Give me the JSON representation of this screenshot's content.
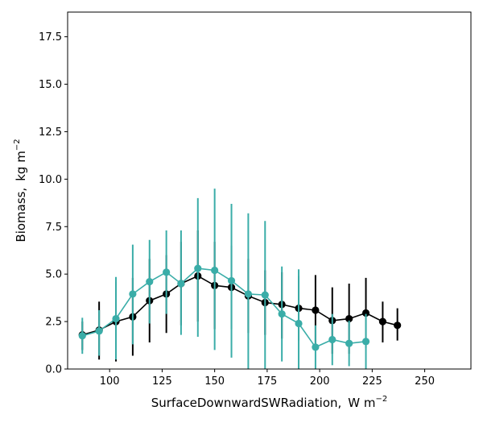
{
  "chart_data": {
    "type": "line",
    "xlabel_main": "SurfaceDownwardSWRadiation,",
    "xlabel_unit": "W m",
    "xlabel_exp": "−2",
    "ylabel_main": "Biomass,",
    "ylabel_unit": "kg m",
    "ylabel_exp": "−2",
    "xlim": [
      80,
      272
    ],
    "ylim": [
      0,
      18.8
    ],
    "x_ticks": [
      100,
      125,
      150,
      175,
      200,
      225,
      250
    ],
    "x_tick_labels": [
      "100",
      "125",
      "150",
      "175",
      "200",
      "225",
      "250"
    ],
    "y_ticks": [
      0,
      2.5,
      5,
      7.5,
      10,
      12.5,
      15,
      17.5
    ],
    "y_tick_labels": [
      "0.0",
      "2.5",
      "5.0",
      "7.5",
      "10.0",
      "12.5",
      "15.0",
      "17.5"
    ],
    "grid": false,
    "series": [
      {
        "color": "#000000",
        "points": [
          {
            "x": 87,
            "y": 1.8,
            "lo": 1.0,
            "hi": 2.5
          },
          {
            "x": 95,
            "y": 2.05,
            "lo": 0.5,
            "hi": 3.55
          },
          {
            "x": 103,
            "y": 2.5,
            "lo": 0.4,
            "hi": 4.6
          },
          {
            "x": 111,
            "y": 2.75,
            "lo": 0.7,
            "hi": 4.8
          },
          {
            "x": 119,
            "y": 3.6,
            "lo": 1.4,
            "hi": 5.8
          },
          {
            "x": 127,
            "y": 3.95,
            "lo": 1.9,
            "hi": 6.0
          },
          {
            "x": 134,
            "y": 4.5,
            "lo": 2.3,
            "hi": 6.7
          },
          {
            "x": 142,
            "y": 4.9,
            "lo": 2.5,
            "hi": 7.3
          },
          {
            "x": 150,
            "y": 4.4,
            "lo": 2.1,
            "hi": 6.7
          },
          {
            "x": 158,
            "y": 4.3,
            "lo": 2.1,
            "hi": 6.5
          },
          {
            "x": 166,
            "y": 3.85,
            "lo": 1.9,
            "hi": 5.8
          },
          {
            "x": 174,
            "y": 3.5,
            "lo": 1.8,
            "hi": 5.2
          },
          {
            "x": 182,
            "y": 3.4,
            "lo": 1.6,
            "hi": 5.1
          },
          {
            "x": 190,
            "y": 3.2,
            "lo": 1.5,
            "hi": 4.9
          },
          {
            "x": 198,
            "y": 3.1,
            "lo": 1.2,
            "hi": 4.95
          },
          {
            "x": 206,
            "y": 2.55,
            "lo": 0.8,
            "hi": 4.3
          },
          {
            "x": 214,
            "y": 2.65,
            "lo": 0.8,
            "hi": 4.5
          },
          {
            "x": 222,
            "y": 2.95,
            "lo": 1.1,
            "hi": 4.8
          },
          {
            "x": 230,
            "y": 2.5,
            "lo": 1.4,
            "hi": 3.55
          },
          {
            "x": 237,
            "y": 2.3,
            "lo": 1.5,
            "hi": 3.2
          }
        ]
      },
      {
        "color": "#3aada8",
        "points": [
          {
            "x": 87,
            "y": 1.75,
            "lo": 0.8,
            "hi": 2.7
          },
          {
            "x": 95,
            "y": 2.0,
            "lo": 0.7,
            "hi": 3.1
          },
          {
            "x": 103,
            "y": 2.65,
            "lo": 0.5,
            "hi": 4.85
          },
          {
            "x": 111,
            "y": 3.95,
            "lo": 1.3,
            "hi": 6.55
          },
          {
            "x": 119,
            "y": 4.6,
            "lo": 2.4,
            "hi": 6.8
          },
          {
            "x": 127,
            "y": 5.1,
            "lo": 2.9,
            "hi": 7.3
          },
          {
            "x": 134,
            "y": 4.5,
            "lo": 1.8,
            "hi": 7.3
          },
          {
            "x": 142,
            "y": 5.3,
            "lo": 1.7,
            "hi": 9.0
          },
          {
            "x": 150,
            "y": 5.2,
            "lo": 1.0,
            "hi": 9.5
          },
          {
            "x": 158,
            "y": 4.65,
            "lo": 0.6,
            "hi": 8.7
          },
          {
            "x": 166,
            "y": 3.95,
            "lo": 0.0,
            "hi": 8.2
          },
          {
            "x": 174,
            "y": 3.9,
            "lo": 0.0,
            "hi": 7.8
          },
          {
            "x": 182,
            "y": 2.9,
            "lo": 0.4,
            "hi": 5.4
          },
          {
            "x": 190,
            "y": 2.4,
            "lo": 0.0,
            "hi": 5.25
          },
          {
            "x": 198,
            "y": 1.15,
            "lo": 0.0,
            "hi": 2.3
          },
          {
            "x": 206,
            "y": 1.55,
            "lo": 0.2,
            "hi": 2.9
          },
          {
            "x": 214,
            "y": 1.35,
            "lo": 0.15,
            "hi": 2.55
          },
          {
            "x": 222,
            "y": 1.45,
            "lo": 0.0,
            "hi": 2.9
          }
        ]
      }
    ]
  }
}
